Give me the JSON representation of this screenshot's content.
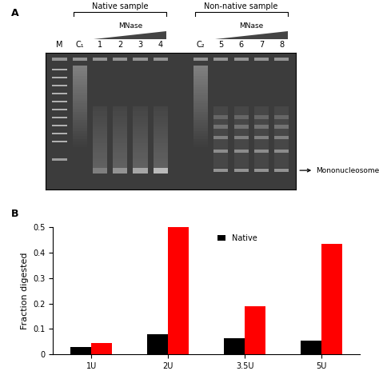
{
  "panel_a": {
    "label": "A",
    "marker_lane": "M",
    "groups": [
      {
        "title": "Native sample",
        "treatment": "MNase",
        "control": "C₁",
        "lanes": [
          "1",
          "2",
          "3",
          "4"
        ],
        "kind": "native"
      },
      {
        "title": "Non-native sample",
        "treatment": "MNase",
        "control": "C₂",
        "lanes": [
          "5",
          "6",
          "7",
          "8"
        ],
        "kind": "non-native"
      }
    ],
    "band_label": "Mononucleosome"
  },
  "chart_data": {
    "type": "bar",
    "panel_label": "B",
    "y_label": "Fraction digested",
    "categories": [
      "1U",
      "2U",
      "3.5U",
      "5U"
    ],
    "series": [
      {
        "name": "Native",
        "color": "#000000",
        "values": [
          0.03,
          0.08,
          0.065,
          0.055
        ]
      },
      {
        "color": "#ff0000",
        "values": [
          0.045,
          0.5,
          0.19,
          0.435
        ]
      }
    ],
    "ylim": [
      0,
      0.5
    ],
    "yticks": [
      0,
      0.1,
      0.2,
      0.3,
      0.4,
      0.5
    ],
    "legend": "upper center",
    "grid": false
  }
}
